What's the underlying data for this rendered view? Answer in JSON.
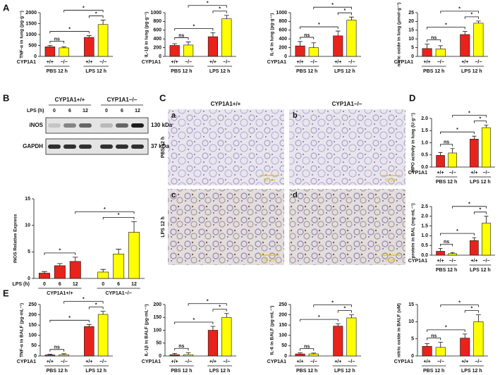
{
  "panel_labels": [
    "A",
    "B",
    "C",
    "D",
    "E"
  ],
  "blot": {
    "groups": [
      "CYP1A1+/+",
      "CYP1A1−/−"
    ],
    "time_label": "LPS (h)",
    "lanes": [
      "0",
      "6",
      "12",
      "0",
      "6",
      "12"
    ],
    "bands": [
      {
        "name": "iNOS",
        "size": "130 kDa"
      },
      {
        "name": "GAPDH",
        "size": "37 kDa"
      }
    ]
  },
  "micrographs": {
    "columns": [
      "CYP1A1+/+",
      "CYP1A1−/−"
    ],
    "rows": [
      "PBS 12 h",
      "LPS 12 h"
    ],
    "panels": [
      "a",
      "b",
      "c",
      "d"
    ],
    "scale_bars": [
      "50 μm",
      "50 μm",
      "50 μm",
      "50 μm"
    ]
  },
  "chart_data": [
    {
      "type": "bar",
      "y_label": "TNF-α in lung (pg·g⁻¹)",
      "row_label": "CYP1A1",
      "categories": [
        "+/+",
        "−/−",
        "+/+",
        "−/−"
      ],
      "groups": [
        "PBS 12 h",
        "LPS 12 h"
      ],
      "values": [
        440,
        390,
        870,
        1460
      ],
      "errors": [
        60,
        50,
        80,
        200
      ],
      "colors": [
        "#e8231b",
        "#ffff00",
        "#e8231b",
        "#ffff00"
      ],
      "ylim": [
        0,
        2000
      ],
      "yticks": [
        0,
        500,
        1000,
        1500,
        2000
      ],
      "annotations": [
        "ns",
        "*",
        "*",
        "*"
      ]
    },
    {
      "type": "bar",
      "y_label": "IL-1β in lung (pg·g⁻¹)",
      "row_label": "CYP1A1",
      "categories": [
        "+/+",
        "−/−",
        "+/+",
        "−/−"
      ],
      "groups": [
        "PBS 12 h",
        "LPS 12 h"
      ],
      "values": [
        250,
        260,
        450,
        860
      ],
      "errors": [
        40,
        70,
        90,
        80
      ],
      "colors": [
        "#e8231b",
        "#ffff00",
        "#e8231b",
        "#ffff00"
      ],
      "ylim": [
        0,
        1000
      ],
      "yticks": [
        0,
        200,
        400,
        600,
        800,
        1000
      ],
      "annotations": [
        "ns",
        "*",
        "*",
        "*"
      ]
    },
    {
      "type": "bar",
      "y_label": "IL-6 in lung (pg·g⁻¹)",
      "row_label": "CYP1A1",
      "categories": [
        "+/+",
        "−/−",
        "+/+",
        "−/−"
      ],
      "groups": [
        "PBS 12 h",
        "LPS 12 h"
      ],
      "values": [
        240,
        200,
        470,
        830
      ],
      "errors": [
        100,
        110,
        110,
        70
      ],
      "colors": [
        "#e8231b",
        "#ffff00",
        "#e8231b",
        "#ffff00"
      ],
      "ylim": [
        0,
        1000
      ],
      "yticks": [
        0,
        200,
        400,
        600,
        800,
        1000
      ],
      "annotations": [
        "ns",
        "*",
        "*",
        "*"
      ]
    },
    {
      "type": "bar",
      "y_label": "nitric oxide in lung (μmol·g⁻¹)",
      "row_label": "CYP1A1",
      "categories": [
        "+/+",
        "−/−",
        "+/+",
        "−/−"
      ],
      "groups": [
        "PBS 12 h",
        "LPS 12 h"
      ],
      "values": [
        4.5,
        4.3,
        12.5,
        19
      ],
      "errors": [
        2.5,
        1.8,
        1.8,
        1.2
      ],
      "colors": [
        "#e8231b",
        "#ffff00",
        "#e8231b",
        "#ffff00"
      ],
      "ylim": [
        0,
        25
      ],
      "yticks": [
        0,
        5,
        10,
        15,
        20,
        25
      ],
      "annotations": [
        "ns",
        "*",
        "*",
        "*"
      ]
    },
    {
      "type": "bar",
      "y_label": "iNOS Relative Express",
      "row_label": "LPS (h)",
      "categories": [
        "0",
        "6",
        "12",
        "0",
        "6",
        "12"
      ],
      "groups": [
        "CYP1A1+/+",
        "CYP1A1−/−"
      ],
      "values": [
        1.0,
        2.4,
        3.2,
        1.2,
        4.6,
        8.7
      ],
      "errors": [
        0.3,
        0.4,
        0.8,
        0.5,
        0.9,
        2.0
      ],
      "colors": [
        "#e8231b",
        "#e8231b",
        "#e8231b",
        "#ffff00",
        "#ffff00",
        "#ffff00"
      ],
      "ylim": [
        0,
        15
      ],
      "yticks": [
        0,
        5,
        10,
        15
      ],
      "annotations": [
        "*",
        "*",
        "*"
      ]
    },
    {
      "type": "bar",
      "y_label": "MPO activity in lung (U·g⁻¹)",
      "row_label": "CYP1A1",
      "categories": [
        "+/+",
        "−/−",
        "+/+",
        "−/−"
      ],
      "groups": [
        "PBS 12 h",
        "LPS 12 h"
      ],
      "values": [
        0.48,
        0.58,
        1.15,
        1.62
      ],
      "errors": [
        0.12,
        0.18,
        0.12,
        0.1
      ],
      "colors": [
        "#e8231b",
        "#ffff00",
        "#e8231b",
        "#ffff00"
      ],
      "ylim": [
        0,
        2
      ],
      "yticks": [
        {
          "value": 0,
          "label": "0.0"
        },
        0.5,
        {
          "value": 1,
          "label": "1.0"
        },
        1.5,
        {
          "value": 2,
          "label": "2.0"
        }
      ],
      "annotations": [
        "ns",
        "*",
        "*",
        "*"
      ]
    },
    {
      "type": "bar",
      "y_label": "protein in BAL (mg·mL⁻¹)",
      "row_label": "CYP1A1",
      "categories": [
        "+/+",
        "−/−",
        "+/+",
        "−/−"
      ],
      "groups": [
        "PBS 12 h",
        "LPS 12 h"
      ],
      "values": [
        0.2,
        0.08,
        0.75,
        1.65
      ],
      "errors": [
        0.15,
        0.05,
        0.15,
        0.35
      ],
      "colors": [
        "#e8231b",
        "#ffff00",
        "#e8231b",
        "#ffff00"
      ],
      "ylim": [
        0,
        2.5
      ],
      "yticks": [
        {
          "value": 0,
          "label": "0.0"
        },
        0.5,
        {
          "value": 1,
          "label": "1.0"
        },
        1.5,
        {
          "value": 2,
          "label": "2.0"
        },
        2.5
      ],
      "annotations": [
        "ns",
        "*",
        "*",
        "*"
      ]
    },
    {
      "type": "bar",
      "y_label": "TNF-α in BALF (pg·mL⁻¹)",
      "row_label": "CYP1A1",
      "categories": [
        "+/+",
        "−/−",
        "+/+",
        "−/−"
      ],
      "groups": [
        "PBS 12 h",
        "LPS 12 h"
      ],
      "values": [
        5,
        6,
        143,
        202
      ],
      "errors": [
        3,
        5,
        10,
        15
      ],
      "colors": [
        "#e8231b",
        "#ffff00",
        "#e8231b",
        "#ffff00"
      ],
      "ylim": [
        0,
        250
      ],
      "yticks": [
        0,
        50,
        100,
        150,
        200,
        250
      ],
      "annotations": [
        "ns",
        "*",
        "*",
        "*"
      ]
    },
    {
      "type": "bar",
      "y_label": "IL-1β in BALF (pg·mL⁻¹)",
      "row_label": "CYP1A1",
      "categories": [
        "+/+",
        "−/−",
        "+/+",
        "−/−"
      ],
      "groups": [
        "PBS 12 h",
        "LPS 12 h"
      ],
      "values": [
        5,
        5,
        100,
        150
      ],
      "errors": [
        5,
        8,
        15,
        15
      ],
      "colors": [
        "#e8231b",
        "#ffff00",
        "#e8231b",
        "#ffff00"
      ],
      "ylim": [
        0,
        200
      ],
      "yticks": [
        0,
        50,
        100,
        150,
        200
      ],
      "annotations": [
        "ns",
        "*",
        "*",
        "*"
      ]
    },
    {
      "type": "bar",
      "y_label": "IL-6 in BALF (pg·mL⁻¹)",
      "row_label": "CYP1A1",
      "categories": [
        "+/+",
        "−/−",
        "+/+",
        "−/−"
      ],
      "groups": [
        "PBS 12 h",
        "LPS 12 h"
      ],
      "values": [
        10,
        10,
        145,
        185
      ],
      "errors": [
        5,
        4,
        12,
        15
      ],
      "colors": [
        "#e8231b",
        "#ffff00",
        "#e8231b",
        "#ffff00"
      ],
      "ylim": [
        0,
        250
      ],
      "yticks": [
        0,
        50,
        100,
        150,
        200,
        250
      ],
      "annotations": [
        "ns",
        "*",
        "*",
        "*"
      ]
    },
    {
      "type": "bar",
      "y_label": "nitric oxide in BALF (uM)",
      "row_label": "CYP1A1",
      "categories": [
        "+/+",
        "−/−",
        "+/+",
        "−/−"
      ],
      "groups": [
        "PBS 12 h",
        "LPS 12 h"
      ],
      "values": [
        2.8,
        2.5,
        5.2,
        10
      ],
      "errors": [
        0.8,
        1.5,
        1.2,
        2
      ],
      "colors": [
        "#e8231b",
        "#ffff00",
        "#e8231b",
        "#ffff00"
      ],
      "ylim": [
        0,
        15
      ],
      "yticks": [
        0,
        5,
        10,
        15
      ],
      "annotations": [
        "ns",
        "*",
        "*",
        "*"
      ]
    }
  ]
}
